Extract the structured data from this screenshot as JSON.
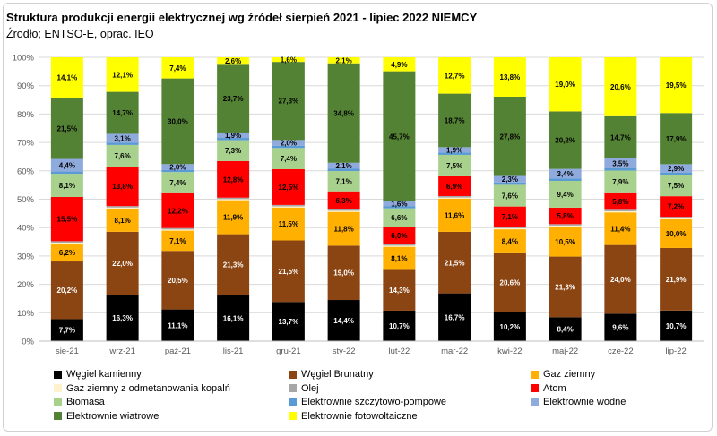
{
  "header": {
    "title": "Struktura produkcji energii elektrycznej wg źródeł sierpień 2021 - lipiec 2022 NIEMCY",
    "subtitle": "Źrodło; ENTSO-E, oprac. IEO"
  },
  "chart_data": {
    "type": "bar",
    "stacked": true,
    "percent_stacked": true,
    "categories": [
      "sie-21",
      "wrz-21",
      "paź-21",
      "lis-21",
      "gru-21",
      "sty-22",
      "lut-22",
      "mar-22",
      "kwi-22",
      "maj-22",
      "cze-22",
      "lip-22"
    ],
    "y_ticks": [
      "0%",
      "10%",
      "20%",
      "30%",
      "40%",
      "50%",
      "60%",
      "70%",
      "80%",
      "90%",
      "100%"
    ],
    "ylim": [
      0,
      100
    ],
    "grid": true,
    "legend_position": "bottom",
    "series": [
      {
        "name": "Węgiel kamienny",
        "color": "#000000",
        "label_color": "#ffffff",
        "values": [
          7.7,
          16.3,
          11.1,
          16.1,
          13.7,
          14.4,
          10.7,
          16.7,
          10.2,
          8.4,
          9.6,
          10.7
        ],
        "labels": [
          "7,7%",
          "16,3%",
          "11,1%",
          "16,1%",
          "13,7%",
          "14,4%",
          "10,7%",
          "16,7%",
          "10,2%",
          "8,4%",
          "9,6%",
          "10,7%"
        ]
      },
      {
        "name": "Węgiel Brunatny",
        "color": "#8b4513",
        "label_color": "#ffffff",
        "values": [
          20.2,
          22.0,
          20.5,
          21.3,
          21.5,
          19.0,
          14.3,
          21.5,
          20.6,
          21.3,
          24.0,
          21.9
        ],
        "labels": [
          "20,2%",
          "22,0%",
          "20,5%",
          "21,3%",
          "21,5%",
          "19,0%",
          "14,3%",
          "21,5%",
          "20,6%",
          "21,3%",
          "24,0%",
          "21,9%"
        ]
      },
      {
        "name": "Gaz ziemny",
        "color": "#ffb000",
        "label_color": "#000000",
        "values": [
          6.2,
          8.1,
          7.1,
          11.9,
          11.5,
          11.8,
          8.1,
          11.6,
          8.4,
          10.5,
          11.4,
          10.0
        ],
        "labels": [
          "6,2%",
          "8,1%",
          "7,1%",
          "11,9%",
          "11,5%",
          "11,8%",
          "8,1%",
          "11,6%",
          "8,4%",
          "10,5%",
          "11,4%",
          "10,0%"
        ]
      },
      {
        "name": "Gaz ziemny z odmetanowania kopalń",
        "color": "#fff2cc",
        "label_color": "#000000",
        "values": [
          0.4,
          0.4,
          0.4,
          0.4,
          0.4,
          0.4,
          0.4,
          0.4,
          0.4,
          0.4,
          0.4,
          0.4
        ],
        "labels": [
          "",
          "",
          "",
          "",
          "",
          "",
          "",
          "",
          "",
          "",
          "",
          ""
        ]
      },
      {
        "name": "Olej",
        "color": "#a6a6a6",
        "label_color": "#000000",
        "values": [
          0.5,
          0.5,
          0.5,
          0.5,
          0.5,
          0.5,
          0.5,
          0.5,
          0.5,
          0.5,
          0.5,
          0.5
        ],
        "labels": [
          "",
          "",
          "",
          "",
          "",
          "",
          "",
          "",
          "",
          "",
          "",
          ""
        ]
      },
      {
        "name": "Atom",
        "color": "#ff0000",
        "label_color": "#000000",
        "values": [
          15.5,
          13.8,
          12.2,
          12.8,
          12.5,
          6.3,
          6.0,
          6.9,
          7.1,
          5.8,
          5.8,
          7.2
        ],
        "labels": [
          "15,5%",
          "13,8%",
          "12,2%",
          "12,8%",
          "12,5%",
          "6,3%",
          "6,0%",
          "6,9%",
          "7,1%",
          "5,8%",
          "5,8%",
          "7,2%"
        ]
      },
      {
        "name": "Biomasa",
        "color": "#a9d18e",
        "label_color": "#000000",
        "values": [
          8.1,
          7.6,
          7.4,
          7.3,
          7.4,
          7.1,
          6.6,
          7.5,
          7.6,
          9.4,
          7.9,
          7.5
        ],
        "labels": [
          "8,1%",
          "7,6%",
          "7,4%",
          "7,3%",
          "7,4%",
          "7,1%",
          "6,6%",
          "7,5%",
          "7,6%",
          "9,4%",
          "7,9%",
          "7,5%"
        ]
      },
      {
        "name": "Elektrownie szczytowo-pompowe",
        "color": "#5b9bd5",
        "label_color": "#000000",
        "values": [
          0.8,
          0.8,
          0.8,
          0.8,
          0.8,
          0.8,
          0.8,
          0.8,
          0.8,
          0.8,
          0.8,
          0.8
        ],
        "labels": [
          "",
          "",
          "",
          "",
          "",
          "",
          "",
          "",
          "",
          "",
          "",
          ""
        ]
      },
      {
        "name": "Elektrownie wodne",
        "color": "#8faadc",
        "label_color": "#000000",
        "values": [
          4.4,
          3.1,
          2.0,
          1.9,
          2.0,
          2.1,
          1.6,
          1.9,
          2.3,
          3.4,
          3.5,
          2.9
        ],
        "labels": [
          "4,4%",
          "3,1%",
          "2,0%",
          "1,9%",
          "2,0%",
          "2,1%",
          "1,6%",
          "1,9%",
          "2,3%",
          "3,4%",
          "3,5%",
          "2,9%"
        ]
      },
      {
        "name": "Elektrownie wiatrowe",
        "color": "#548235",
        "label_color": "#000000",
        "values": [
          21.5,
          14.7,
          30.0,
          23.7,
          27.3,
          34.8,
          45.7,
          18.7,
          27.8,
          20.2,
          14.7,
          17.9
        ],
        "labels": [
          "21,5%",
          "14,7%",
          "30,0%",
          "23,7%",
          "27,3%",
          "34,8%",
          "45,7%",
          "18,7%",
          "27,8%",
          "20,2%",
          "14,7%",
          "17,9%"
        ]
      },
      {
        "name": "Elektrownie fotowoltaiczne",
        "color": "#ffff00",
        "label_color": "#000000",
        "values": [
          14.1,
          12.1,
          7.4,
          2.6,
          1.6,
          2.1,
          4.9,
          12.7,
          13.8,
          19.0,
          20.6,
          19.5
        ],
        "labels": [
          "14,1%",
          "12,1%",
          "7,4%",
          "2,6%",
          "1,6%",
          "2,1%",
          "4,9%",
          "12,7%",
          "13,8%",
          "19,0%",
          "20,6%",
          "19,5%"
        ]
      }
    ]
  }
}
